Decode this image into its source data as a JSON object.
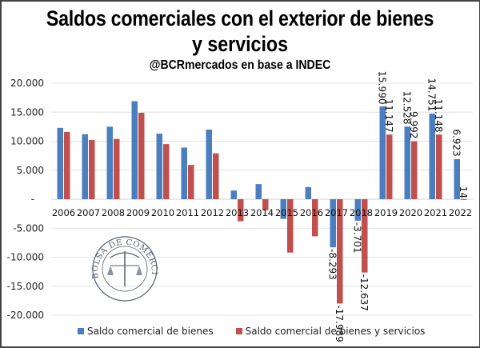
{
  "chart_data": {
    "type": "bar",
    "title": "Saldos comerciales con el exterior de bienes y servicios",
    "title_lines": [
      "Saldos comerciales con el exterior de bienes",
      "y servicios"
    ],
    "subtitle": "@BCRmercados en base a INDEC",
    "xlabel": "",
    "ylabel": "",
    "ylim": [
      -20000,
      20000
    ],
    "yticks": [
      20000,
      15000,
      10000,
      5000,
      0,
      -5000,
      -10000,
      -15000,
      -20000
    ],
    "ytick_labels": [
      "20.000",
      "15.000",
      "10.000",
      "5.000",
      "-",
      "-5.000",
      "-10.000",
      "-15.000",
      "-20.000"
    ],
    "grid": true,
    "legend_position": "bottom",
    "categories": [
      "2006",
      "2007",
      "2008",
      "2009",
      "2010",
      "2011",
      "2012",
      "2013",
      "2014",
      "2015",
      "2016",
      "2017",
      "2018",
      "2019",
      "2020",
      "2021",
      "2022"
    ],
    "series": [
      {
        "name": "Saldo comercial de bienes",
        "color": "#4a7ebf",
        "values": [
          12300,
          11200,
          12500,
          16900,
          11300,
          8900,
          12000,
          1500,
          2600,
          -3400,
          2100,
          -8293,
          -3701,
          15990,
          12528,
          14751,
          6923
        ],
        "labels": [
          "",
          "",
          "",
          "",
          "",
          "",
          "",
          "",
          "",
          "",
          "",
          "-8.293",
          "-3.701",
          "15.990",
          "12.528",
          "14.751",
          "6.923"
        ]
      },
      {
        "name": "Saldo comercial de bienes y servicios",
        "color": "#c0504d",
        "values": [
          11600,
          10200,
          10400,
          14900,
          9500,
          5900,
          7900,
          -3800,
          -1900,
          -9200,
          -6400,
          -17989,
          -12637,
          11147,
          9992,
          11148,
          14
        ],
        "labels": [
          "",
          "",
          "",
          "",
          "",
          "",
          "",
          "",
          "",
          "",
          "",
          "-17.989",
          "-12.637",
          "11.147",
          "9.992",
          "11.148",
          "14"
        ]
      }
    ]
  },
  "watermark": {
    "text": "BOLSA DE COMERCIO DE ROSARIO"
  }
}
